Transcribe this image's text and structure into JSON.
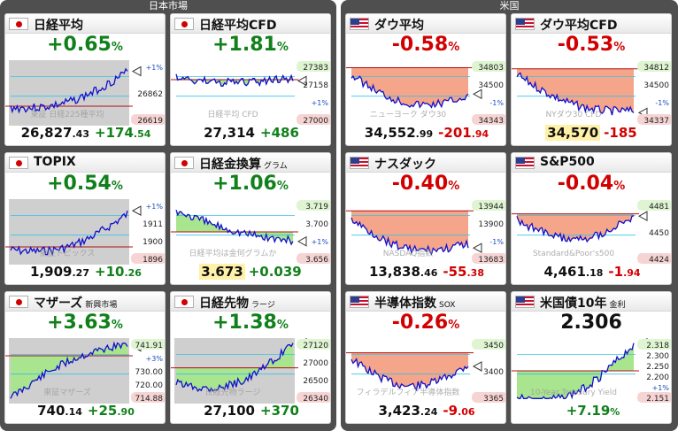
{
  "panels": {
    "japan": "日本市場",
    "us": "米国"
  },
  "cards": [
    {
      "name": "日経平均",
      "sub": "",
      "flag": "jp",
      "pct": "+0.65",
      "unit": "%",
      "dir": "up",
      "price_int": "26,827",
      "price_dec": ".43",
      "price_hl": false,
      "chg_int": "+174",
      "chg_dec": ".54",
      "watermark": "東証 日経225種平均",
      "labels": [
        "+1%",
        "26862",
        "26619"
      ],
      "bg": "gray",
      "fill": "none"
    },
    {
      "name": "日経平均CFD",
      "sub": "",
      "flag": "jp",
      "pct": "+1.81",
      "unit": "%",
      "dir": "up",
      "price_int": "27,314",
      "price_dec": "",
      "price_hl": false,
      "chg_int": "+486",
      "chg_dec": "",
      "watermark": "日経平均 CFD",
      "labels": [
        "27383",
        "27158",
        "+1%",
        "27000"
      ],
      "bg": "white",
      "fill": "green"
    },
    {
      "name": "ダウ平均",
      "sub": "",
      "flag": "us",
      "pct": "-0.58",
      "unit": "%",
      "dir": "down",
      "price_int": "34,552",
      "price_dec": ".99",
      "price_hl": false,
      "chg_int": "-201",
      "chg_dec": ".94",
      "watermark": "ニューヨーク ダウ30",
      "labels": [
        "34803",
        "34500",
        "-1%",
        "34343"
      ],
      "bg": "white",
      "fill": "red"
    },
    {
      "name": "ダウ平均CFD",
      "sub": "",
      "flag": "us",
      "pct": "-0.53",
      "unit": "%",
      "dir": "down",
      "price_int": "34,570",
      "price_dec": "",
      "price_hl": true,
      "chg_int": "-185",
      "chg_dec": "",
      "watermark": "NYダウ30 CFD",
      "labels": [
        "34812",
        "34500",
        "-1%",
        "34337"
      ],
      "bg": "white",
      "fill": "red"
    },
    {
      "name": "TOPIX",
      "sub": "",
      "flag": "jp",
      "pct": "+0.54",
      "unit": "%",
      "dir": "up",
      "price_int": "1,909",
      "price_dec": ".27",
      "price_hl": false,
      "chg_int": "+10",
      "chg_dec": ".26",
      "watermark": "東証トピックス",
      "labels": [
        "+1%",
        "1911",
        "1900",
        "1896"
      ],
      "bg": "gray",
      "fill": "none"
    },
    {
      "name": "日経金換算",
      "sub": "グラム",
      "flag": "jp",
      "pct": "+1.06",
      "unit": "%",
      "dir": "up",
      "price_int": "3.673",
      "price_dec": "",
      "price_hl": true,
      "chg_int": "+0.039",
      "chg_dec": "",
      "watermark": "日経平均は金何グラムか",
      "labels": [
        "3.719",
        "3.700",
        "+1%",
        "3.656"
      ],
      "bg": "white",
      "fill": "green"
    },
    {
      "name": "ナスダック",
      "sub": "",
      "flag": "us",
      "pct": "-0.40",
      "unit": "%",
      "dir": "down",
      "price_int": "13,838",
      "price_dec": ".46",
      "price_hl": false,
      "chg_int": "-55",
      "chg_dec": ".38",
      "watermark": "NASDAQ指数",
      "labels": [
        "13944",
        "13900",
        "-1%",
        "13683"
      ],
      "bg": "white",
      "fill": "red"
    },
    {
      "name": "S&P500",
      "sub": "",
      "flag": "us",
      "pct": "-0.04",
      "unit": "%",
      "dir": "down",
      "price_int": "4,461",
      "price_dec": ".18",
      "price_hl": false,
      "chg_int": "-1",
      "chg_dec": ".94",
      "watermark": "Standard&Poor's500",
      "labels": [
        "4481",
        "4450",
        "4424"
      ],
      "bg": "white",
      "fill": "red"
    },
    {
      "name": "マザーズ",
      "sub": "新興市場",
      "flag": "jp",
      "pct": "+3.63",
      "unit": "%",
      "dir": "up",
      "price_int": "740",
      "price_dec": ".14",
      "price_hl": false,
      "chg_int": "+25",
      "chg_dec": ".90",
      "watermark": "東証マザーズ",
      "labels": [
        "741.91",
        "+3%",
        "730.00",
        "720.00",
        "714.88"
      ],
      "bg": "gray",
      "fill": "green"
    },
    {
      "name": "日経先物",
      "sub": "ラージ",
      "flag": "jp",
      "pct": "+1.38",
      "unit": "%",
      "dir": "up",
      "price_int": "27,100",
      "price_dec": "",
      "price_hl": false,
      "chg_int": "+370",
      "chg_dec": "",
      "watermark": "日経先物ラージ",
      "labels": [
        "27120",
        "27000",
        "26500",
        "26340"
      ],
      "bg": "gray",
      "fill": "green"
    },
    {
      "name": "半導体指数",
      "sub": "SOX",
      "flag": "us",
      "pct": "-0.26",
      "unit": "%",
      "dir": "down",
      "price_int": "3,423",
      "price_dec": ".24",
      "price_hl": false,
      "chg_int": "-9",
      "chg_dec": ".06",
      "watermark": "フィラデルフィア半導体指数",
      "labels": [
        "3450",
        "3400",
        "3365"
      ],
      "bg": "white",
      "fill": "red"
    },
    {
      "name": "米国債10年",
      "sub": "金利",
      "flag": "us",
      "pct": "2.306",
      "unit": "",
      "dir": "blk",
      "price_int": "",
      "price_dec": "",
      "price_hl": false,
      "chg_int": "+7.19",
      "chg_dec": "%",
      "watermark": "10-Year Treasury Yield",
      "labels": [
        "2.318",
        "2.300",
        "2.250",
        "2.200",
        "+1%",
        "2.151"
      ],
      "bg": "white",
      "fill": "green"
    }
  ],
  "colors": {
    "up": "#11801b",
    "down": "#d20000",
    "line": "#1010cc",
    "green_fill": "#a9e58f",
    "red_fill": "#f5a58a",
    "gray_bg": "#cfcfcf"
  }
}
